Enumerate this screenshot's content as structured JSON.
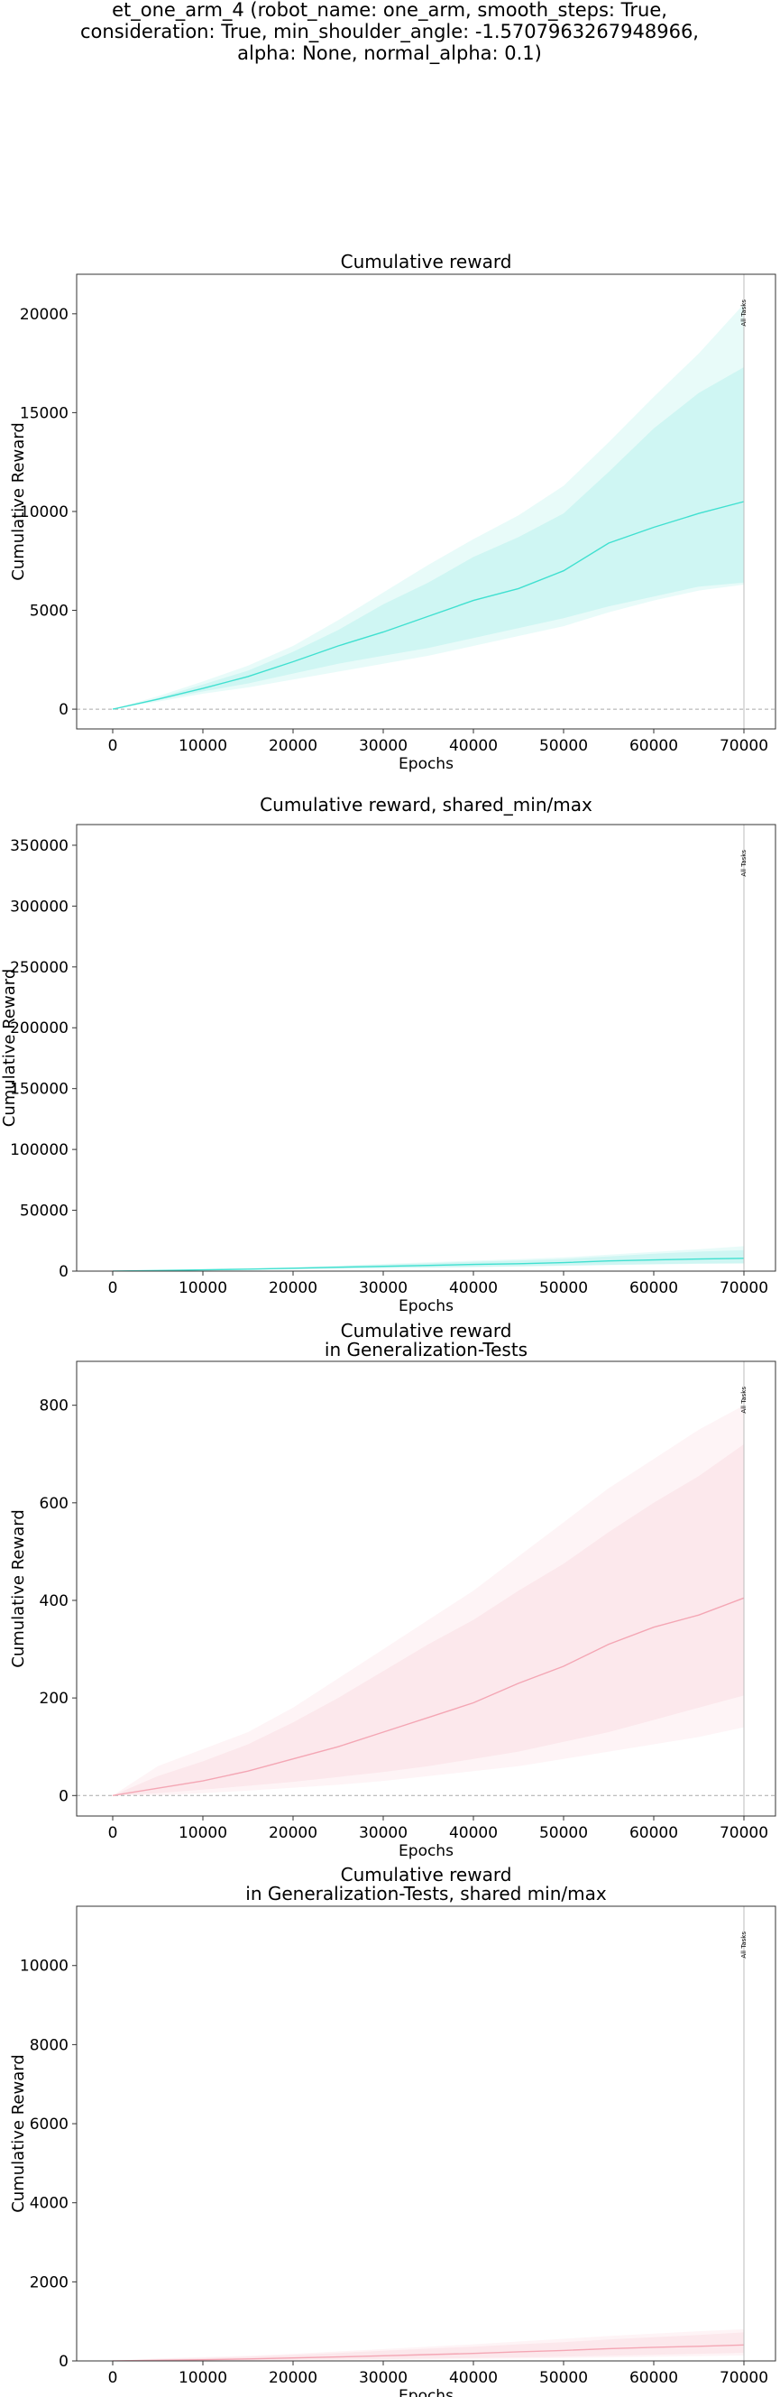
{
  "figure": {
    "title_lines": [
      "et_one_arm_4 (robot_name: one_arm, smooth_steps: True,",
      "consideration: True, min_shoulder_angle: -1.5707963267948966,",
      "alpha: None, normal_alpha: 0.1)"
    ]
  },
  "chart_data": [
    {
      "type": "line",
      "title_lines": [
        "Cumulative reward"
      ],
      "xlabel": "Epochs",
      "ylabel": "Cumulative Reward",
      "xlim": [
        -4000,
        73500
      ],
      "ylim": [
        -1000,
        22000
      ],
      "xticks": [
        0,
        10000,
        20000,
        30000,
        40000,
        50000,
        60000,
        70000
      ],
      "yticks": [
        0,
        5000,
        10000,
        15000,
        20000
      ],
      "vline": {
        "x": 70000,
        "label": "All Tasks"
      },
      "hline": 0,
      "grid": false,
      "color": "#40e0d0",
      "x": [
        0,
        5000,
        10000,
        15000,
        20000,
        25000,
        30000,
        35000,
        40000,
        45000,
        50000,
        55000,
        60000,
        65000,
        70000
      ],
      "series": [
        {
          "mean": [
            0,
            500,
            1050,
            1650,
            2400,
            3200,
            3900,
            4700,
            5500,
            6100,
            7000,
            8400,
            9200,
            9900,
            10500
          ],
          "inner_low": [
            0,
            450,
            900,
            1300,
            1800,
            2300,
            2700,
            3100,
            3600,
            4100,
            4600,
            5200,
            5700,
            6200,
            6400
          ],
          "inner_high": [
            0,
            560,
            1250,
            1950,
            2900,
            4000,
            5300,
            6400,
            7700,
            8700,
            9900,
            12000,
            14200,
            16000,
            17300
          ],
          "outer_low": [
            0,
            380,
            780,
            1100,
            1500,
            1900,
            2300,
            2700,
            3200,
            3700,
            4200,
            4900,
            5500,
            6000,
            6300
          ],
          "outer_high": [
            0,
            650,
            1400,
            2200,
            3200,
            4500,
            5900,
            7300,
            8600,
            9800,
            11300,
            13500,
            15800,
            18000,
            20500
          ]
        }
      ]
    },
    {
      "type": "line",
      "title_lines": [
        "Cumulative reward, shared_min/max"
      ],
      "xlabel": "Epochs",
      "ylabel": "Cumulative Reward",
      "xlim": [
        -4000,
        73500
      ],
      "ylim": [
        0,
        367000
      ],
      "xticks": [
        0,
        10000,
        20000,
        30000,
        40000,
        50000,
        60000,
        70000
      ],
      "yticks": [
        0,
        50000,
        100000,
        150000,
        200000,
        250000,
        300000,
        350000
      ],
      "vline": {
        "x": 70000,
        "label": "All Tasks"
      },
      "hline": 0,
      "grid": false,
      "color": "#40e0d0",
      "x": [
        0,
        5000,
        10000,
        15000,
        20000,
        25000,
        30000,
        35000,
        40000,
        45000,
        50000,
        55000,
        60000,
        65000,
        70000
      ],
      "series": [
        {
          "mean": [
            0,
            500,
            1050,
            1650,
            2400,
            3200,
            3900,
            4700,
            5500,
            6100,
            7000,
            8400,
            9200,
            9900,
            10500
          ],
          "inner_low": [
            0,
            450,
            900,
            1300,
            1800,
            2300,
            2700,
            3100,
            3600,
            4100,
            4600,
            5200,
            5700,
            6200,
            6400
          ],
          "inner_high": [
            0,
            560,
            1250,
            1950,
            2900,
            4000,
            5300,
            6400,
            7700,
            8700,
            9900,
            12000,
            14200,
            16000,
            17300
          ],
          "outer_low": [
            0,
            380,
            780,
            1100,
            1500,
            1900,
            2300,
            2700,
            3200,
            3700,
            4200,
            4900,
            5500,
            6000,
            6300
          ],
          "outer_high": [
            0,
            650,
            1400,
            2200,
            3200,
            4500,
            5900,
            7300,
            8600,
            9800,
            11300,
            13500,
            15800,
            18000,
            20500
          ]
        }
      ]
    },
    {
      "type": "line",
      "title_lines": [
        "Cumulative reward",
        "in Generalization-Tests"
      ],
      "xlabel": "Epochs",
      "ylabel": "Cumulative Reward",
      "xlim": [
        -4000,
        73500
      ],
      "ylim": [
        -42,
        890
      ],
      "xticks": [
        0,
        10000,
        20000,
        30000,
        40000,
        50000,
        60000,
        70000
      ],
      "yticks": [
        0,
        200,
        400,
        600,
        800
      ],
      "vline": {
        "x": 70000,
        "label": "All Tasks"
      },
      "hline": 0,
      "grid": false,
      "color": "#f4a6b4",
      "x": [
        0,
        5000,
        10000,
        15000,
        20000,
        25000,
        30000,
        35000,
        40000,
        45000,
        50000,
        55000,
        60000,
        65000,
        70000
      ],
      "series": [
        {
          "mean": [
            0,
            15,
            30,
            50,
            75,
            100,
            130,
            160,
            190,
            230,
            265,
            310,
            345,
            370,
            405
          ],
          "inner_low": [
            0,
            5,
            12,
            20,
            28,
            38,
            48,
            60,
            75,
            90,
            110,
            130,
            155,
            180,
            205
          ],
          "inner_high": [
            0,
            40,
            70,
            105,
            150,
            200,
            255,
            310,
            360,
            420,
            475,
            540,
            600,
            655,
            720
          ],
          "outer_low": [
            0,
            0,
            5,
            10,
            16,
            22,
            30,
            40,
            50,
            60,
            75,
            90,
            105,
            120,
            140
          ],
          "outer_high": [
            0,
            60,
            95,
            130,
            180,
            240,
            300,
            360,
            420,
            490,
            560,
            630,
            690,
            750,
            800
          ]
        }
      ]
    },
    {
      "type": "line",
      "title_lines": [
        "Cumulative reward",
        "in Generalization-Tests, shared min/max"
      ],
      "xlabel": "Epochs",
      "ylabel": "Cumulative Reward",
      "xlim": [
        -4000,
        73500
      ],
      "ylim": [
        0,
        11500
      ],
      "xticks": [
        0,
        10000,
        20000,
        30000,
        40000,
        50000,
        60000,
        70000
      ],
      "yticks": [
        0,
        2000,
        4000,
        6000,
        8000,
        10000
      ],
      "vline": {
        "x": 70000,
        "label": "All Tasks"
      },
      "hline": 0,
      "grid": false,
      "color": "#f4a6b4",
      "x": [
        0,
        5000,
        10000,
        15000,
        20000,
        25000,
        30000,
        35000,
        40000,
        45000,
        50000,
        55000,
        60000,
        65000,
        70000
      ],
      "series": [
        {
          "mean": [
            0,
            15,
            30,
            50,
            75,
            100,
            130,
            160,
            190,
            230,
            265,
            310,
            345,
            370,
            405
          ],
          "inner_low": [
            0,
            5,
            12,
            20,
            28,
            38,
            48,
            60,
            75,
            90,
            110,
            130,
            155,
            180,
            205
          ],
          "inner_high": [
            0,
            40,
            70,
            105,
            150,
            200,
            255,
            310,
            360,
            420,
            475,
            540,
            600,
            655,
            720
          ],
          "outer_low": [
            0,
            0,
            5,
            10,
            16,
            22,
            30,
            40,
            50,
            60,
            75,
            90,
            105,
            120,
            140
          ],
          "outer_high": [
            0,
            60,
            95,
            130,
            180,
            240,
            300,
            360,
            420,
            490,
            560,
            630,
            690,
            750,
            800
          ]
        }
      ]
    }
  ]
}
